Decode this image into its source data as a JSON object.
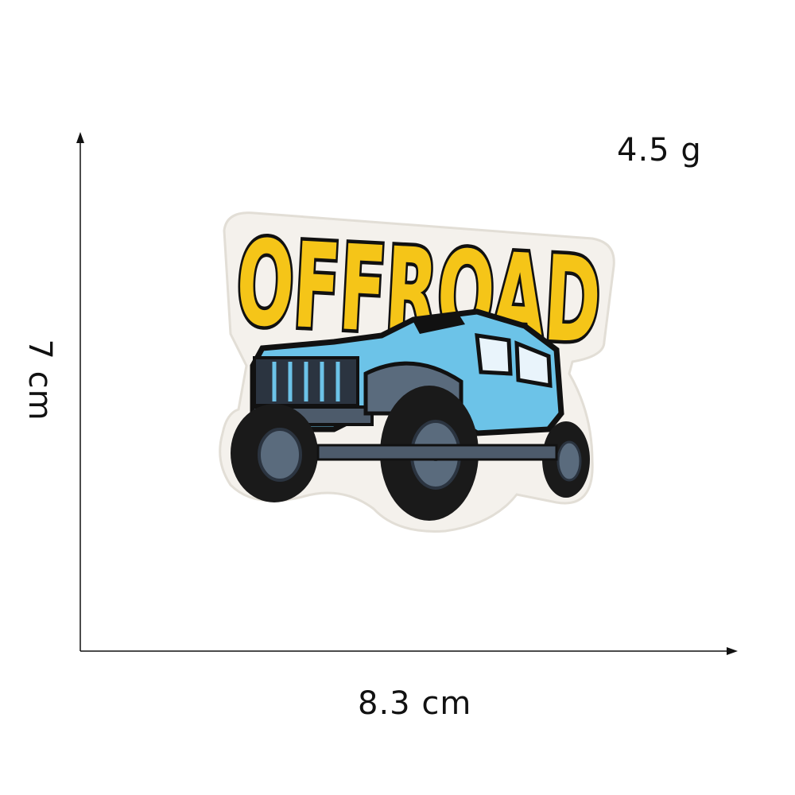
{
  "weight_label": "4.5 g",
  "width_label": "8.3 cm",
  "height_label": "7 cm",
  "patch": {
    "text": "OFFROAD",
    "colors": {
      "text_fill": "#f5c518",
      "outline": "#111111",
      "jeep_body": "#6cc3e8",
      "tire": "#1a1a1a",
      "rim": "#5a6b7d",
      "backing": "#f4f1ec"
    }
  }
}
